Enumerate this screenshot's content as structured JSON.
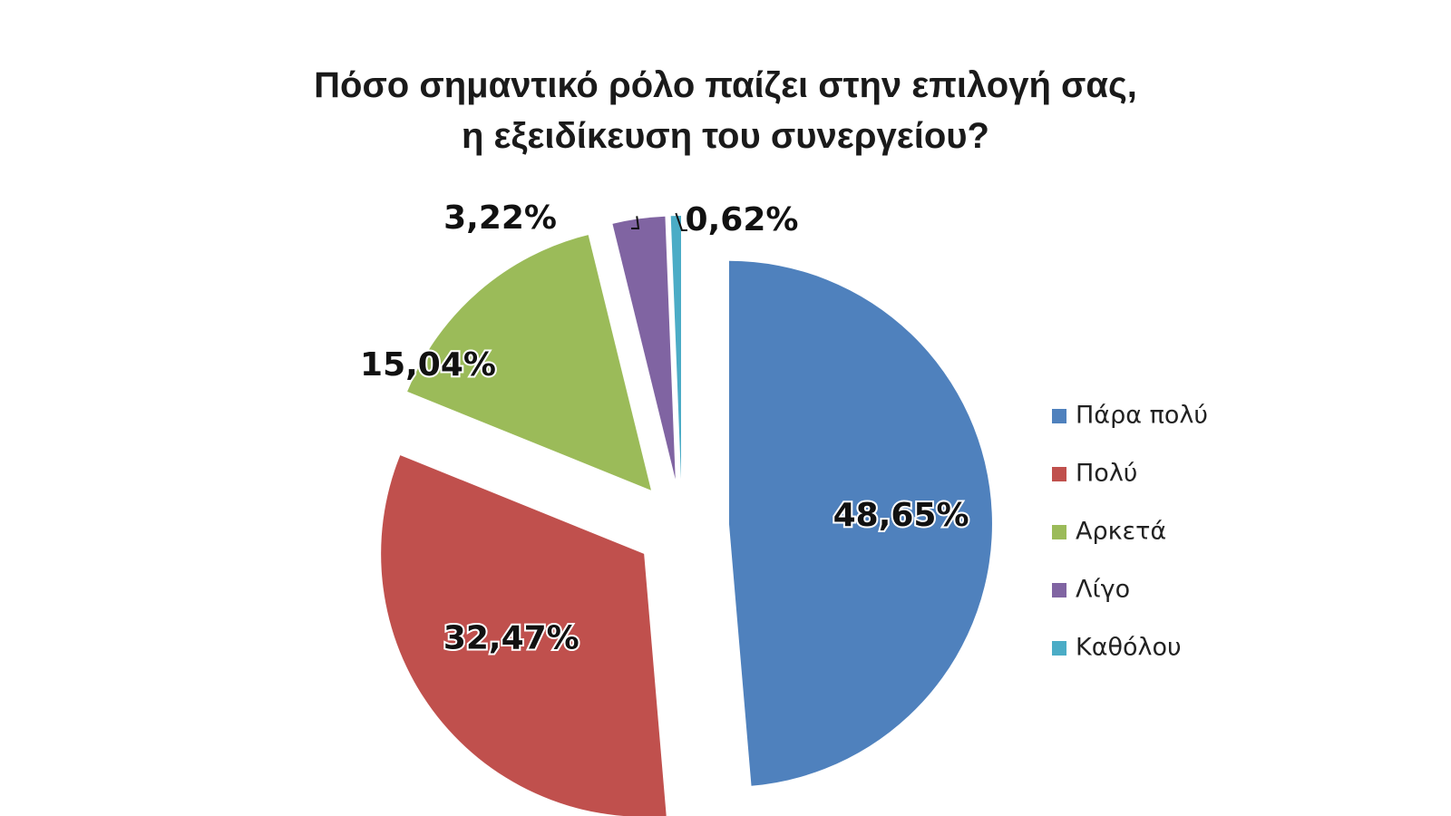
{
  "chart_data": {
    "type": "pie",
    "title": [
      "Πόσο σημαντικό ρόλο παίζει στην επιλογή σας,",
      "η εξειδίκευση του συνεργείου?"
    ],
    "categories": [
      "Πάρα πολύ",
      "Πολύ",
      "Αρκετά",
      "Λίγο",
      "Καθόλου"
    ],
    "values": [
      48.65,
      32.47,
      15.04,
      3.22,
      0.62
    ],
    "data_labels": [
      "48,65%",
      "32,47%",
      "15,04%",
      "3,22%",
      "0,62%"
    ],
    "colors": [
      "#4f81bd",
      "#c0504d",
      "#9bbb59",
      "#8064a2",
      "#4bacc6"
    ],
    "exploded": true,
    "legend": "right"
  }
}
